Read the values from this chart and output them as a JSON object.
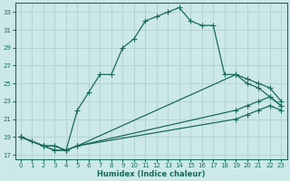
{
  "xlabel": "Humidex (Indice chaleur)",
  "ylabel": "",
  "bg_color": "#cce8e8",
  "line_color": "#1a6b5a",
  "grid_color": "#aacccc",
  "xlim": [
    -0.5,
    23.5
  ],
  "ylim": [
    16.5,
    34.0
  ],
  "xticks": [
    0,
    1,
    2,
    3,
    4,
    5,
    6,
    7,
    8,
    9,
    10,
    11,
    12,
    13,
    14,
    15,
    16,
    17,
    18,
    19,
    20,
    21,
    22,
    23
  ],
  "yticks": [
    17,
    19,
    21,
    23,
    25,
    27,
    29,
    31,
    33
  ],
  "line1_x": [
    0,
    1,
    2,
    3,
    4,
    5,
    6,
    7,
    8,
    9,
    10,
    11,
    12,
    13,
    14,
    15,
    16,
    17,
    18,
    19,
    20,
    21,
    22,
    23
  ],
  "line1_y": [
    19,
    18.5,
    18,
    18,
    17.5,
    22,
    24,
    26,
    26,
    29,
    30,
    32,
    32.5,
    33,
    33.5,
    32,
    31.5,
    31.5,
    26,
    26,
    25,
    24.5,
    23.5,
    22.5
  ],
  "line2_x": [
    0,
    2,
    3,
    4,
    5,
    19,
    20,
    21,
    22,
    23
  ],
  "line2_y": [
    19,
    18,
    18,
    17.5,
    18,
    26,
    25.5,
    25,
    24.5,
    23
  ],
  "line3_x": [
    0,
    2,
    3,
    4,
    5,
    19,
    20,
    21,
    22,
    23
  ],
  "line3_y": [
    19,
    18,
    17.5,
    17.5,
    18,
    22,
    22.5,
    23,
    23.5,
    22.5
  ],
  "line4_x": [
    0,
    2,
    3,
    4,
    5,
    19,
    20,
    21,
    22,
    23
  ],
  "line4_y": [
    19,
    18,
    17.5,
    17.5,
    18,
    21,
    21.5,
    22,
    22.5,
    22
  ]
}
